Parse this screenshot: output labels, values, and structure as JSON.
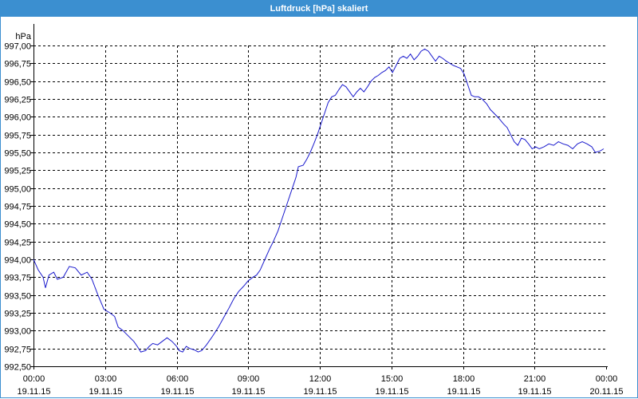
{
  "window": {
    "title": "Luftdruck [hPa] skaliert"
  },
  "chart_data": {
    "type": "line",
    "title": "Luftdruck [hPa] skaliert",
    "ylabel": "hPa",
    "ylim": [
      992.5,
      997.0
    ],
    "xlim": [
      0,
      24
    ],
    "grid": true,
    "line_color": "#1a1acd",
    "grid_color": "#000000",
    "y_ticks": [
      {
        "value": 997.0,
        "label": "997,00"
      },
      {
        "value": 996.75,
        "label": "996,75"
      },
      {
        "value": 996.5,
        "label": "996,50"
      },
      {
        "value": 996.25,
        "label": "996,25"
      },
      {
        "value": 996.0,
        "label": "996,00"
      },
      {
        "value": 995.75,
        "label": "995,75"
      },
      {
        "value": 995.5,
        "label": "995,50"
      },
      {
        "value": 995.25,
        "label": "995,25"
      },
      {
        "value": 995.0,
        "label": "995,00"
      },
      {
        "value": 994.75,
        "label": "994,75"
      },
      {
        "value": 994.5,
        "label": "994,50"
      },
      {
        "value": 994.25,
        "label": "994,25"
      },
      {
        "value": 994.0,
        "label": "994,00"
      },
      {
        "value": 993.75,
        "label": "993,75"
      },
      {
        "value": 993.5,
        "label": "993,50"
      },
      {
        "value": 993.25,
        "label": "993,25"
      },
      {
        "value": 993.0,
        "label": "993,00"
      },
      {
        "value": 992.75,
        "label": "992,75"
      },
      {
        "value": 992.5,
        "label": "992,50"
      }
    ],
    "x_ticks": [
      {
        "value": 0,
        "time": "00:00",
        "date": "19.11.15"
      },
      {
        "value": 3,
        "time": "03:00",
        "date": "19.11.15"
      },
      {
        "value": 6,
        "time": "06:00",
        "date": "19.11.15"
      },
      {
        "value": 9,
        "time": "09:00",
        "date": "19.11.15"
      },
      {
        "value": 12,
        "time": "12:00",
        "date": "19.11.15"
      },
      {
        "value": 15,
        "time": "15:00",
        "date": "19.11.15"
      },
      {
        "value": 18,
        "time": "18:00",
        "date": "19.11.15"
      },
      {
        "value": 21,
        "time": "21:00",
        "date": "19.11.15"
      },
      {
        "value": 24,
        "time": "00:00",
        "date": "20.11.15"
      }
    ],
    "series": [
      {
        "points": [
          [
            0.0,
            994.0
          ],
          [
            0.2,
            993.85
          ],
          [
            0.4,
            993.75
          ],
          [
            0.5,
            993.6
          ],
          [
            0.65,
            993.78
          ],
          [
            0.85,
            993.82
          ],
          [
            1.0,
            993.72
          ],
          [
            1.25,
            993.75
          ],
          [
            1.5,
            993.9
          ],
          [
            1.75,
            993.88
          ],
          [
            2.0,
            993.78
          ],
          [
            2.25,
            993.82
          ],
          [
            2.45,
            993.72
          ],
          [
            2.7,
            993.5
          ],
          [
            2.95,
            993.3
          ],
          [
            3.2,
            993.25
          ],
          [
            3.4,
            993.2
          ],
          [
            3.55,
            993.05
          ],
          [
            3.75,
            993.0
          ],
          [
            3.9,
            992.95
          ],
          [
            4.05,
            992.9
          ],
          [
            4.2,
            992.85
          ],
          [
            4.35,
            992.78
          ],
          [
            4.5,
            992.7
          ],
          [
            4.7,
            992.72
          ],
          [
            4.85,
            992.78
          ],
          [
            5.0,
            992.82
          ],
          [
            5.2,
            992.8
          ],
          [
            5.4,
            992.85
          ],
          [
            5.6,
            992.9
          ],
          [
            5.8,
            992.85
          ],
          [
            6.0,
            992.78
          ],
          [
            6.1,
            992.72
          ],
          [
            6.25,
            992.7
          ],
          [
            6.4,
            992.78
          ],
          [
            6.55,
            992.75
          ],
          [
            6.75,
            992.73
          ],
          [
            6.9,
            992.7
          ],
          [
            7.05,
            992.72
          ],
          [
            7.25,
            992.8
          ],
          [
            7.5,
            992.92
          ],
          [
            7.75,
            993.05
          ],
          [
            8.0,
            993.2
          ],
          [
            8.2,
            993.32
          ],
          [
            8.4,
            993.45
          ],
          [
            8.6,
            993.55
          ],
          [
            8.8,
            993.62
          ],
          [
            9.0,
            993.7
          ],
          [
            9.2,
            993.75
          ],
          [
            9.35,
            993.78
          ],
          [
            9.5,
            993.85
          ],
          [
            9.7,
            994.0
          ],
          [
            9.9,
            994.15
          ],
          [
            10.05,
            994.25
          ],
          [
            10.25,
            994.4
          ],
          [
            10.45,
            994.6
          ],
          [
            10.65,
            994.8
          ],
          [
            10.85,
            995.0
          ],
          [
            11.0,
            995.15
          ],
          [
            11.1,
            995.3
          ],
          [
            11.3,
            995.32
          ],
          [
            11.45,
            995.4
          ],
          [
            11.6,
            995.5
          ],
          [
            11.75,
            995.62
          ],
          [
            11.9,
            995.75
          ],
          [
            12.05,
            995.9
          ],
          [
            12.2,
            996.05
          ],
          [
            12.35,
            996.2
          ],
          [
            12.5,
            996.28
          ],
          [
            12.65,
            996.3
          ],
          [
            12.8,
            996.38
          ],
          [
            12.95,
            996.45
          ],
          [
            13.1,
            996.42
          ],
          [
            13.25,
            996.35
          ],
          [
            13.4,
            996.28
          ],
          [
            13.55,
            996.35
          ],
          [
            13.7,
            996.4
          ],
          [
            13.85,
            996.35
          ],
          [
            14.0,
            996.42
          ],
          [
            14.15,
            996.5
          ],
          [
            14.3,
            996.55
          ],
          [
            14.45,
            996.58
          ],
          [
            14.6,
            996.62
          ],
          [
            14.75,
            996.65
          ],
          [
            14.9,
            996.7
          ],
          [
            15.05,
            996.62
          ],
          [
            15.2,
            996.72
          ],
          [
            15.35,
            996.82
          ],
          [
            15.5,
            996.85
          ],
          [
            15.65,
            996.82
          ],
          [
            15.8,
            996.88
          ],
          [
            15.95,
            996.8
          ],
          [
            16.1,
            996.85
          ],
          [
            16.25,
            996.92
          ],
          [
            16.4,
            996.95
          ],
          [
            16.55,
            996.92
          ],
          [
            16.7,
            996.85
          ],
          [
            16.85,
            996.78
          ],
          [
            17.0,
            996.85
          ],
          [
            17.15,
            996.82
          ],
          [
            17.3,
            996.78
          ],
          [
            17.45,
            996.75
          ],
          [
            17.6,
            996.72
          ],
          [
            17.75,
            996.7
          ],
          [
            17.9,
            996.68
          ],
          [
            18.05,
            996.6
          ],
          [
            18.2,
            996.45
          ],
          [
            18.35,
            996.3
          ],
          [
            18.5,
            996.28
          ],
          [
            18.65,
            996.28
          ],
          [
            18.8,
            996.25
          ],
          [
            19.0,
            996.18
          ],
          [
            19.15,
            996.1
          ],
          [
            19.3,
            996.05
          ],
          [
            19.5,
            995.98
          ],
          [
            19.7,
            995.9
          ],
          [
            19.85,
            995.85
          ],
          [
            20.0,
            995.75
          ],
          [
            20.15,
            995.65
          ],
          [
            20.3,
            995.6
          ],
          [
            20.45,
            995.7
          ],
          [
            20.6,
            995.68
          ],
          [
            20.75,
            995.62
          ],
          [
            20.9,
            995.55
          ],
          [
            21.05,
            995.58
          ],
          [
            21.2,
            995.55
          ],
          [
            21.4,
            995.58
          ],
          [
            21.6,
            995.62
          ],
          [
            21.8,
            995.6
          ],
          [
            22.0,
            995.65
          ],
          [
            22.2,
            995.62
          ],
          [
            22.4,
            995.6
          ],
          [
            22.6,
            995.55
          ],
          [
            22.8,
            995.62
          ],
          [
            23.0,
            995.65
          ],
          [
            23.2,
            995.62
          ],
          [
            23.4,
            995.58
          ],
          [
            23.55,
            995.5
          ],
          [
            23.75,
            995.52
          ],
          [
            23.9,
            995.55
          ]
        ]
      }
    ]
  }
}
